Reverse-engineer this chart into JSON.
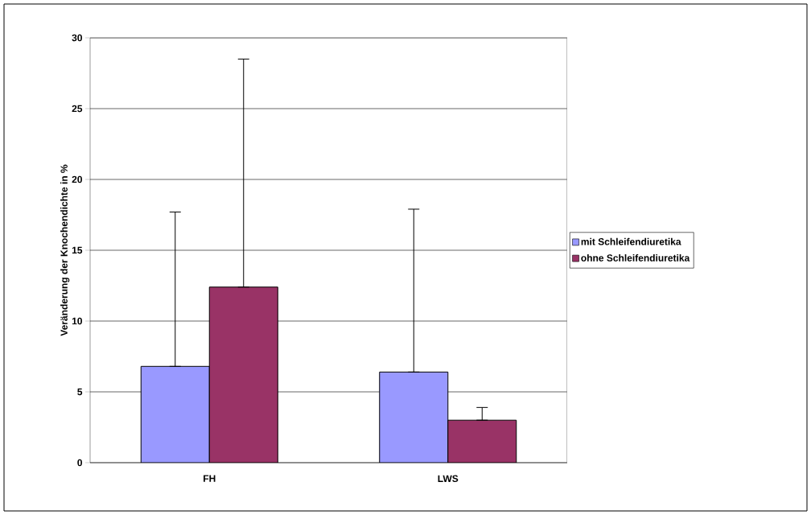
{
  "chart_data": {
    "type": "bar",
    "ylabel": "Veränderung der Knochendichte in %",
    "categories": [
      "FH",
      "LWS"
    ],
    "series": [
      {
        "name": "mit Schleifendiuretika",
        "color": "#9999ff",
        "values": [
          6.8,
          6.4
        ],
        "errors": [
          [
            6.8,
            17.7
          ],
          [
            6.4,
            17.9
          ]
        ]
      },
      {
        "name": "ohne Schleifendiuretika",
        "color": "#993366",
        "values": [
          12.4,
          3.0
        ],
        "errors": [
          [
            12.4,
            28.5
          ],
          [
            3.0,
            3.9
          ]
        ]
      }
    ],
    "ylim": [
      0,
      30
    ],
    "yticks": [
      0,
      5,
      10,
      15,
      20,
      25,
      30
    ],
    "grid": "y",
    "legend": "right"
  }
}
